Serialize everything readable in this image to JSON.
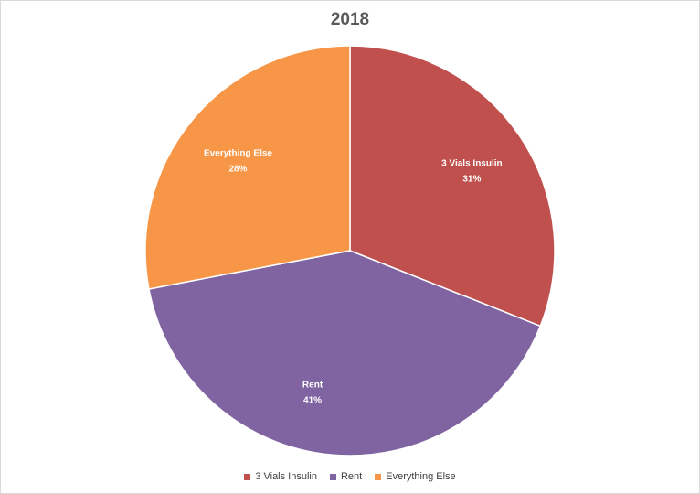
{
  "chart_data": {
    "type": "pie",
    "title": "2018",
    "categories": [
      "3 Vials Insulin",
      "Rent",
      "Everything Else"
    ],
    "values": [
      31,
      41,
      28
    ],
    "value_labels": [
      "31%",
      "41%",
      "28%"
    ],
    "colors": [
      "#c0504d",
      "#8064a2",
      "#f79646"
    ],
    "legend_position": "bottom",
    "start_angle": "12 o'clock, clockwise"
  }
}
